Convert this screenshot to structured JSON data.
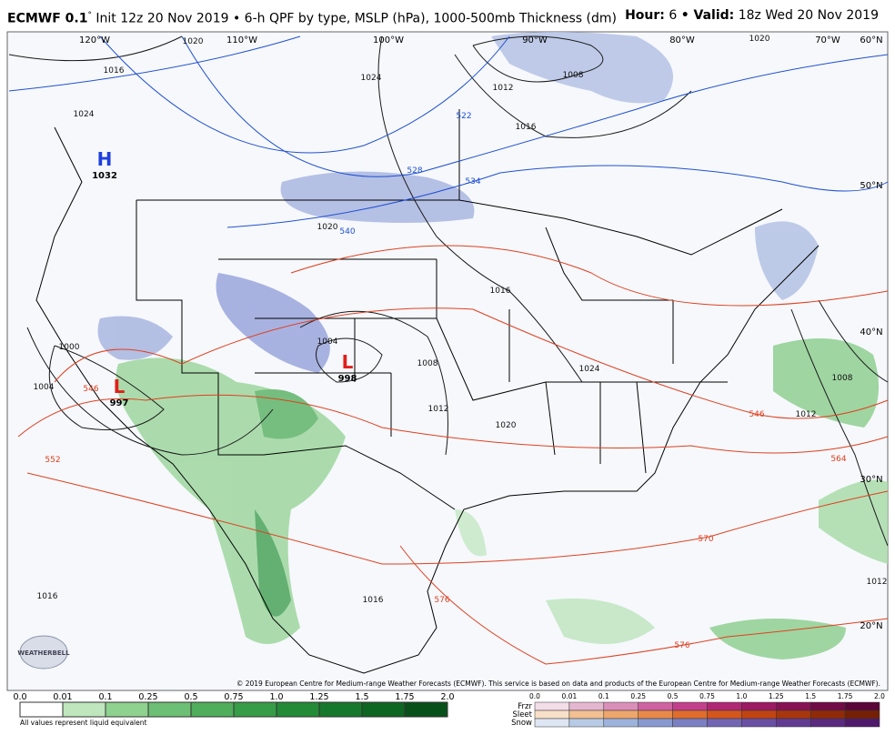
{
  "header": {
    "model": "ECMWF 0.1",
    "degree": "°",
    "description": "Init 12z 20 Nov 2019 • 6-h QPF by type, MSLP (hPa), 1000-500mb Thickness (dm)",
    "hour_label": "Hour:",
    "hour": "6",
    "valid_label": "• Valid:",
    "valid": "18z Wed 20 Nov 2019"
  },
  "map": {
    "longitudes": [
      "120°W",
      "110°W",
      "100°W",
      "90°W",
      "80°W",
      "70°W",
      "60°N"
    ],
    "latitudes": [
      "50°N",
      "40°N",
      "30°N",
      "20°N"
    ],
    "pressure_centers": [
      {
        "symbol": "H",
        "value": "1032"
      },
      {
        "symbol": "L",
        "value": "997"
      },
      {
        "symbol": "L",
        "value": "998"
      }
    ],
    "isobar_labels": [
      "1016",
      "1024",
      "1020",
      "1024",
      "1008",
      "1012",
      "1016",
      "1020",
      "1020",
      "1016",
      "1004",
      "1008",
      "1012",
      "1020",
      "1024",
      "1000",
      "1004",
      "1008",
      "1012",
      "1012",
      "1016",
      "1016"
    ],
    "thickness_labels": [
      "522",
      "528",
      "534",
      "540",
      "546",
      "546",
      "552",
      "564",
      "570",
      "576",
      "576"
    ],
    "copyright": "© 2019 European Centre for Medium-range Weather Forecasts (ECMWF). This service is based on data and products of the European Centre for Medium-range Weather Forecasts (ECMWF).",
    "brand": "WEATHERBELL"
  },
  "legend": {
    "rain_ticks": [
      "0.0",
      "0.01",
      "0.1",
      "0.25",
      "0.5",
      "0.75",
      "1.0",
      "1.25",
      "1.5",
      "1.75",
      "2.0"
    ],
    "note": "All values represent liquid equivalent",
    "types": [
      "Frzr",
      "Sleet",
      "Snow"
    ],
    "mixed_ticks": [
      "0.0",
      "0.01",
      "0.1",
      "0.25",
      "0.5",
      "0.75",
      "1.0",
      "1.25",
      "1.5",
      "1.75",
      "2.0"
    ]
  }
}
